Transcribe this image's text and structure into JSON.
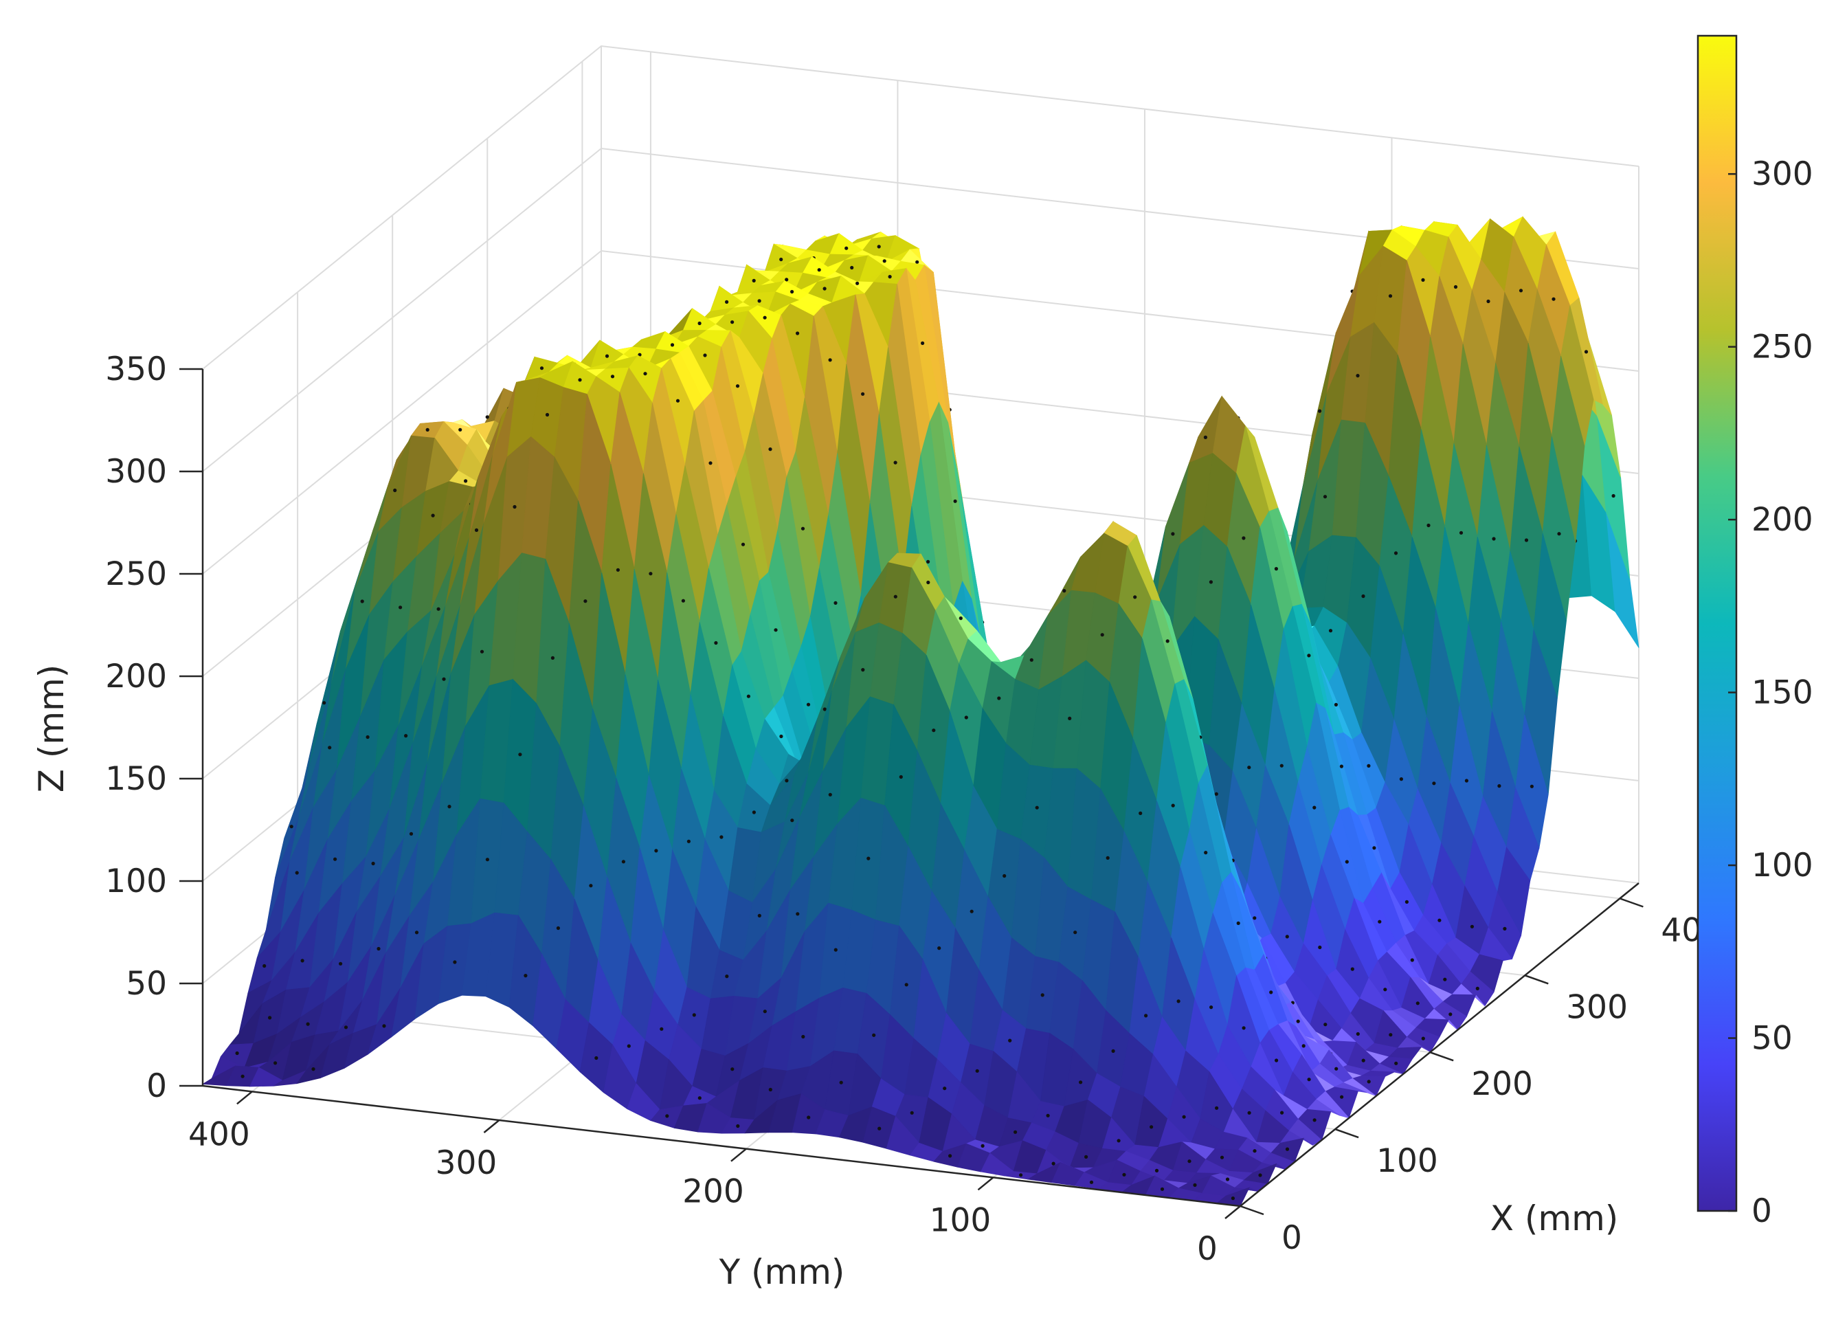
{
  "chart_data": {
    "type": "surface",
    "title": "",
    "xlabel": "X (mm)",
    "ylabel": "Y (mm)",
    "zlabel": "Z (mm)",
    "xlim": [
      0,
      420
    ],
    "ylim": [
      0,
      420
    ],
    "zlim": [
      0,
      350
    ],
    "x_ticks": [
      0,
      100,
      200,
      300,
      400
    ],
    "y_ticks": [
      0,
      100,
      200,
      300,
      400
    ],
    "z_ticks": [
      0,
      50,
      100,
      150,
      200,
      250,
      300,
      350
    ],
    "x_tick_labels": [
      "0",
      "100",
      "200",
      "300",
      "400"
    ],
    "y_tick_labels": [
      "0",
      "100",
      "200",
      "300",
      "400"
    ],
    "z_tick_labels": [
      "0",
      "50",
      "100",
      "150",
      "200",
      "250",
      "300",
      "350"
    ],
    "grid": true,
    "colormap": "parula",
    "colorbar": {
      "location": "right",
      "clim": [
        0,
        340
      ],
      "ticks": [
        0,
        50,
        100,
        150,
        200,
        250,
        300
      ],
      "tick_labels": [
        "0",
        "50",
        "100",
        "150",
        "200",
        "250",
        "300"
      ]
    },
    "peaks": [
      {
        "x": 250,
        "y": 250,
        "z": 330
      },
      {
        "x": 210,
        "y": 245,
        "z": 325
      },
      {
        "x": 150,
        "y": 265,
        "z": 270
      },
      {
        "x": 90,
        "y": 275,
        "z": 250
      },
      {
        "x": 100,
        "y": 375,
        "z": 250
      },
      {
        "x": 165,
        "y": 345,
        "z": 260
      },
      {
        "x": 55,
        "y": 310,
        "z": 250
      },
      {
        "x": 330,
        "y": 70,
        "z": 320
      },
      {
        "x": 380,
        "y": 20,
        "z": 300
      },
      {
        "x": 110,
        "y": 90,
        "z": 270
      },
      {
        "x": 230,
        "y": 95,
        "z": 290
      },
      {
        "x": 80,
        "y": 170,
        "z": 255
      }
    ]
  }
}
